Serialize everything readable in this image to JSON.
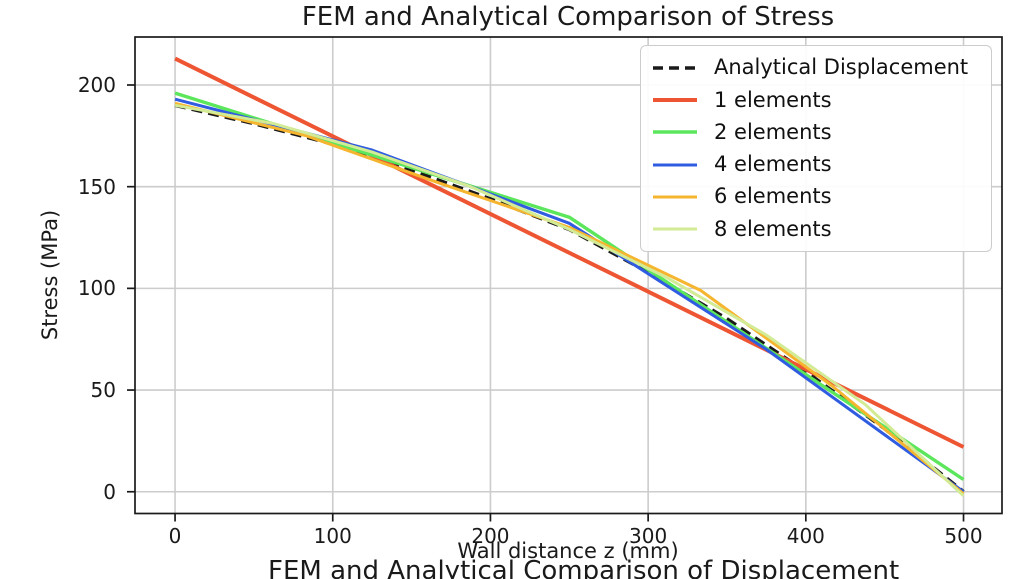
{
  "figure": {
    "title": "FEM and Analytical Comparison of Stress",
    "xlabel": "Wall distance z (mm)",
    "ylabel": "Stress (MPa)",
    "clipped_next_title": "FEM and Analytical Comparison of Displacement"
  },
  "chart_data": {
    "type": "line",
    "title": "FEM and Analytical Comparison of Stress",
    "xlabel": "Wall distance z (mm)",
    "ylabel": "Stress (MPa)",
    "xlim": [
      -25.4,
      524.4
    ],
    "ylim": [
      -10.7,
      223.6
    ],
    "xticks": [
      0,
      100,
      200,
      300,
      400,
      500
    ],
    "yticks": [
      0,
      50,
      100,
      150,
      200
    ],
    "grid": true,
    "grid_color": "#cccccc",
    "axis_color": "#1a1a1a",
    "legend_position": "upper right",
    "series": [
      {
        "name": "Analytical Displacement",
        "color": "#1a1a1a",
        "style": "dashed",
        "width": 3.6,
        "x": [
          0,
          50,
          100,
          150,
          200,
          250,
          300,
          350,
          400,
          450,
          500
        ],
        "y": [
          190,
          181,
          171,
          158,
          144,
          129,
          108,
          85,
          59,
          31,
          0
        ]
      },
      {
        "name": "1 elements",
        "color": "#ee5533",
        "style": "solid",
        "width": 4.0,
        "x": [
          0,
          500
        ],
        "y": [
          213,
          22
        ]
      },
      {
        "name": "2 elements",
        "color": "#5ce65c",
        "style": "solid",
        "width": 3.4,
        "x": [
          0,
          250,
          500
        ],
        "y": [
          196,
          135,
          6
        ]
      },
      {
        "name": "4 elements",
        "color": "#2f5ce0",
        "style": "solid",
        "width": 3.0,
        "x": [
          0,
          125,
          250,
          375,
          500
        ],
        "y": [
          193,
          168,
          132,
          70,
          0
        ]
      },
      {
        "name": "6 elements",
        "color": "#f6b52e",
        "style": "solid",
        "width": 3.0,
        "x": [
          0,
          83.3,
          166.7,
          250,
          333.3,
          416.7,
          500
        ],
        "y": [
          191,
          175,
          152,
          130,
          99,
          52,
          -1
        ]
      },
      {
        "name": "8 elements",
        "color": "#d2eb94",
        "style": "solid",
        "width": 3.0,
        "x": [
          0,
          62.5,
          125,
          187.5,
          250,
          312.5,
          375,
          437.5,
          500
        ],
        "y": [
          190,
          181,
          167,
          150,
          129,
          105,
          77,
          43,
          -2
        ]
      }
    ]
  }
}
